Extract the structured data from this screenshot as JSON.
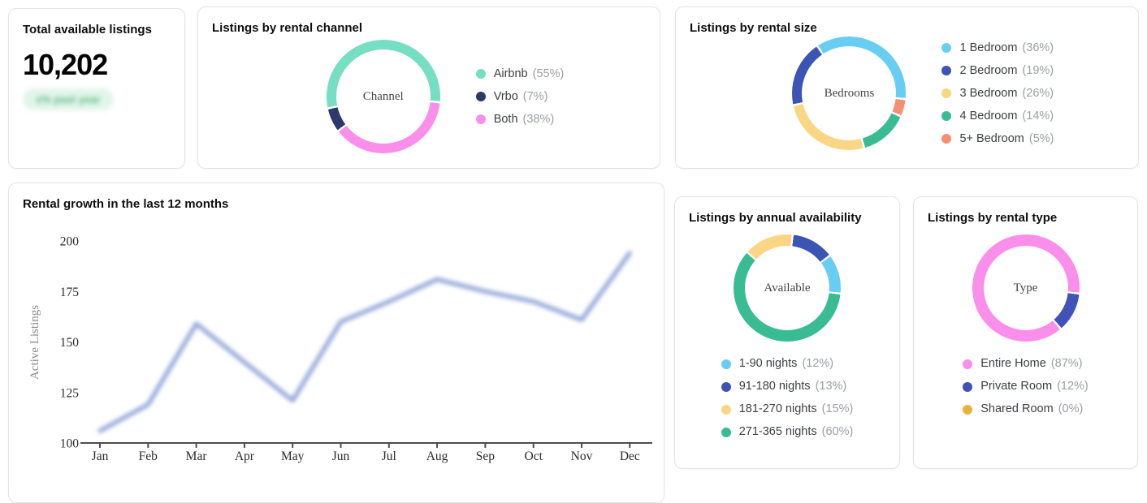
{
  "total_card": {
    "title": "Total available listings",
    "value": "10,202",
    "badge": {
      "text": "x% past year",
      "blurred": true,
      "bg": "#e2f5e9",
      "color": "#5cb985"
    }
  },
  "chart_data": [
    {
      "id": "channel",
      "type": "donut",
      "title": "Listings by rental channel",
      "center_label": "Channel",
      "legend_position": "right",
      "start_angle_deg": 97,
      "direction": "counterclockwise",
      "segments": [
        {
          "label": "Airbnb",
          "pct": 55,
          "color": "#76dec2"
        },
        {
          "label": "Vrbo",
          "pct": 7,
          "color": "#2b3a6b"
        },
        {
          "label": "Both",
          "pct": 38,
          "color": "#f98eeb"
        }
      ]
    },
    {
      "id": "size",
      "type": "donut",
      "title": "Listings by rental size",
      "center_label": "Bedrooms",
      "legend_position": "right",
      "start_angle_deg": 97,
      "direction": "counterclockwise",
      "segments": [
        {
          "label": "1 Bedroom",
          "pct": 36,
          "color": "#67cdf3"
        },
        {
          "label": "2 Bedroom",
          "pct": 19,
          "color": "#3c54b3"
        },
        {
          "label": "3 Bedroom",
          "pct": 26,
          "color": "#f8d683"
        },
        {
          "label": "4 Bedroom",
          "pct": 14,
          "color": "#3abc92"
        },
        {
          "label": "5+ Bedroom",
          "pct": 5,
          "color": "#f58f71"
        }
      ]
    },
    {
      "id": "availability",
      "type": "donut",
      "title": "Listings by annual availability",
      "center_label": "Available",
      "legend_position": "bottom",
      "start_angle_deg": 97,
      "direction": "counterclockwise",
      "segments": [
        {
          "label": "1-90 nights",
          "pct": 12,
          "color": "#67cdf3"
        },
        {
          "label": "91-180 nights",
          "pct": 13,
          "color": "#3c54b3"
        },
        {
          "label": "181-270 nights",
          "pct": 15,
          "color": "#f8d683"
        },
        {
          "label": "271-365 nights",
          "pct": 60,
          "color": "#3abc92"
        }
      ]
    },
    {
      "id": "type",
      "type": "donut",
      "title": "Listings by rental type",
      "center_label": "Type",
      "legend_position": "bottom",
      "start_angle_deg": 97,
      "direction": "counterclockwise",
      "segments": [
        {
          "label": "Entire Home",
          "pct": 87,
          "color": "#f98eeb"
        },
        {
          "label": "Private Room",
          "pct": 12,
          "color": "#4152b8"
        },
        {
          "label": "Shared Room",
          "pct": 0,
          "color": "#e6b23e"
        }
      ]
    },
    {
      "id": "growth",
      "type": "line",
      "title": "Rental growth in the last 12 months",
      "x": [
        "Jan",
        "Feb",
        "Mar",
        "Apr",
        "May",
        "Jun",
        "Jul",
        "Aug",
        "Sep",
        "Oct",
        "Nov",
        "Dec"
      ],
      "values": [
        106,
        119,
        159,
        140,
        121,
        160,
        170,
        181,
        175,
        170,
        161,
        194
      ],
      "xlabel": "",
      "ylabel": "Active Listings",
      "ylim": [
        100,
        200
      ],
      "yticks": [
        100,
        125,
        150,
        175,
        200
      ],
      "grid": true,
      "legend_position": "none",
      "line_color": "#8ba0d6",
      "line_blurred": true
    }
  ]
}
